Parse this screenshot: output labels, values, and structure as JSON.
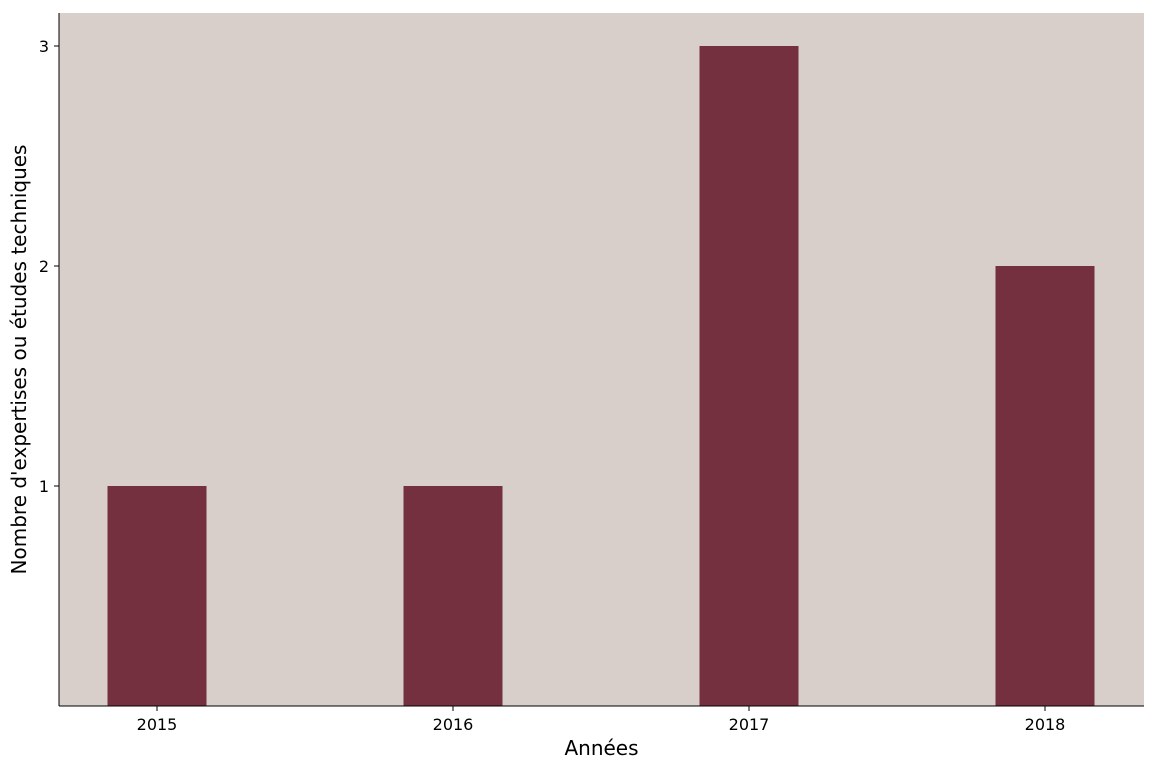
{
  "chart_data": {
    "type": "bar",
    "title": "",
    "xlabel": "Années",
    "ylabel": "Nombre d'expertises ou études techniques",
    "categories": [
      "2015",
      "2016",
      "2017",
      "2018"
    ],
    "values": [
      1,
      1,
      3,
      2
    ],
    "ylim": [
      0,
      3.15
    ],
    "yticks": [
      1,
      2,
      3
    ],
    "grid": false,
    "legend": "none",
    "colors": {
      "bar": "#75303f",
      "plot_background": "#d8ceca",
      "axis": "#000000"
    }
  }
}
